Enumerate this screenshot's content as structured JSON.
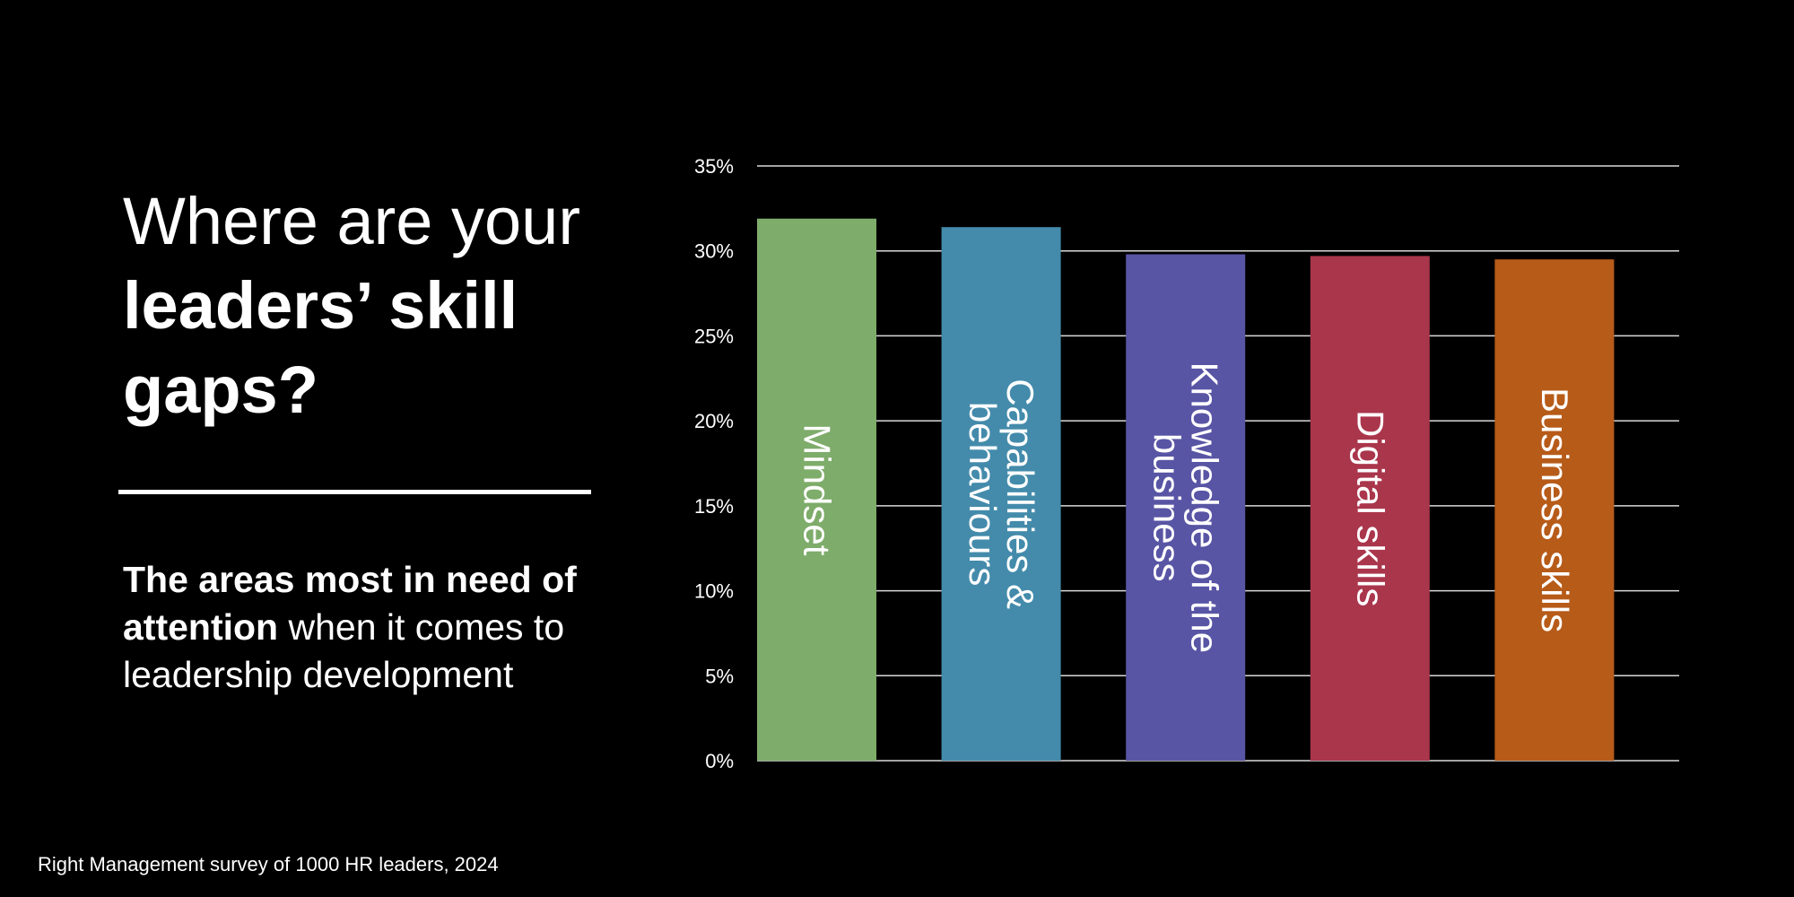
{
  "heading": {
    "line1": "Where are your",
    "line2": "leaders’ skill",
    "line3": "gaps?"
  },
  "subheading": {
    "bold": "The areas most in need of attention",
    "rest": " when it comes to leadership development"
  },
  "source": "Right Management survey of 1000 HR leaders, 2024",
  "colors": {
    "background": "#000000",
    "text": "#ffffff",
    "gridline": "#d9d9d9",
    "bars": [
      "#7eac6a",
      "#448bab",
      "#5955a5",
      "#aa364c",
      "#b75b19"
    ]
  },
  "chart_data": {
    "type": "bar",
    "categories": [
      [
        "Mindset"
      ],
      [
        "Capabilities &",
        "behaviours"
      ],
      [
        "Knowledge of the",
        "business"
      ],
      [
        "Digital skills"
      ],
      [
        "Business skills"
      ]
    ],
    "values": [
      31.9,
      31.4,
      29.8,
      29.7,
      29.5
    ],
    "ylim": [
      0,
      35
    ],
    "yticks": [
      0,
      5,
      10,
      15,
      20,
      25,
      30,
      35
    ],
    "ytick_labels": [
      "0%",
      "5%",
      "10%",
      "15%",
      "20%",
      "25%",
      "30%",
      "35%"
    ],
    "grid": true,
    "bar_label_orientation": "vertical"
  }
}
